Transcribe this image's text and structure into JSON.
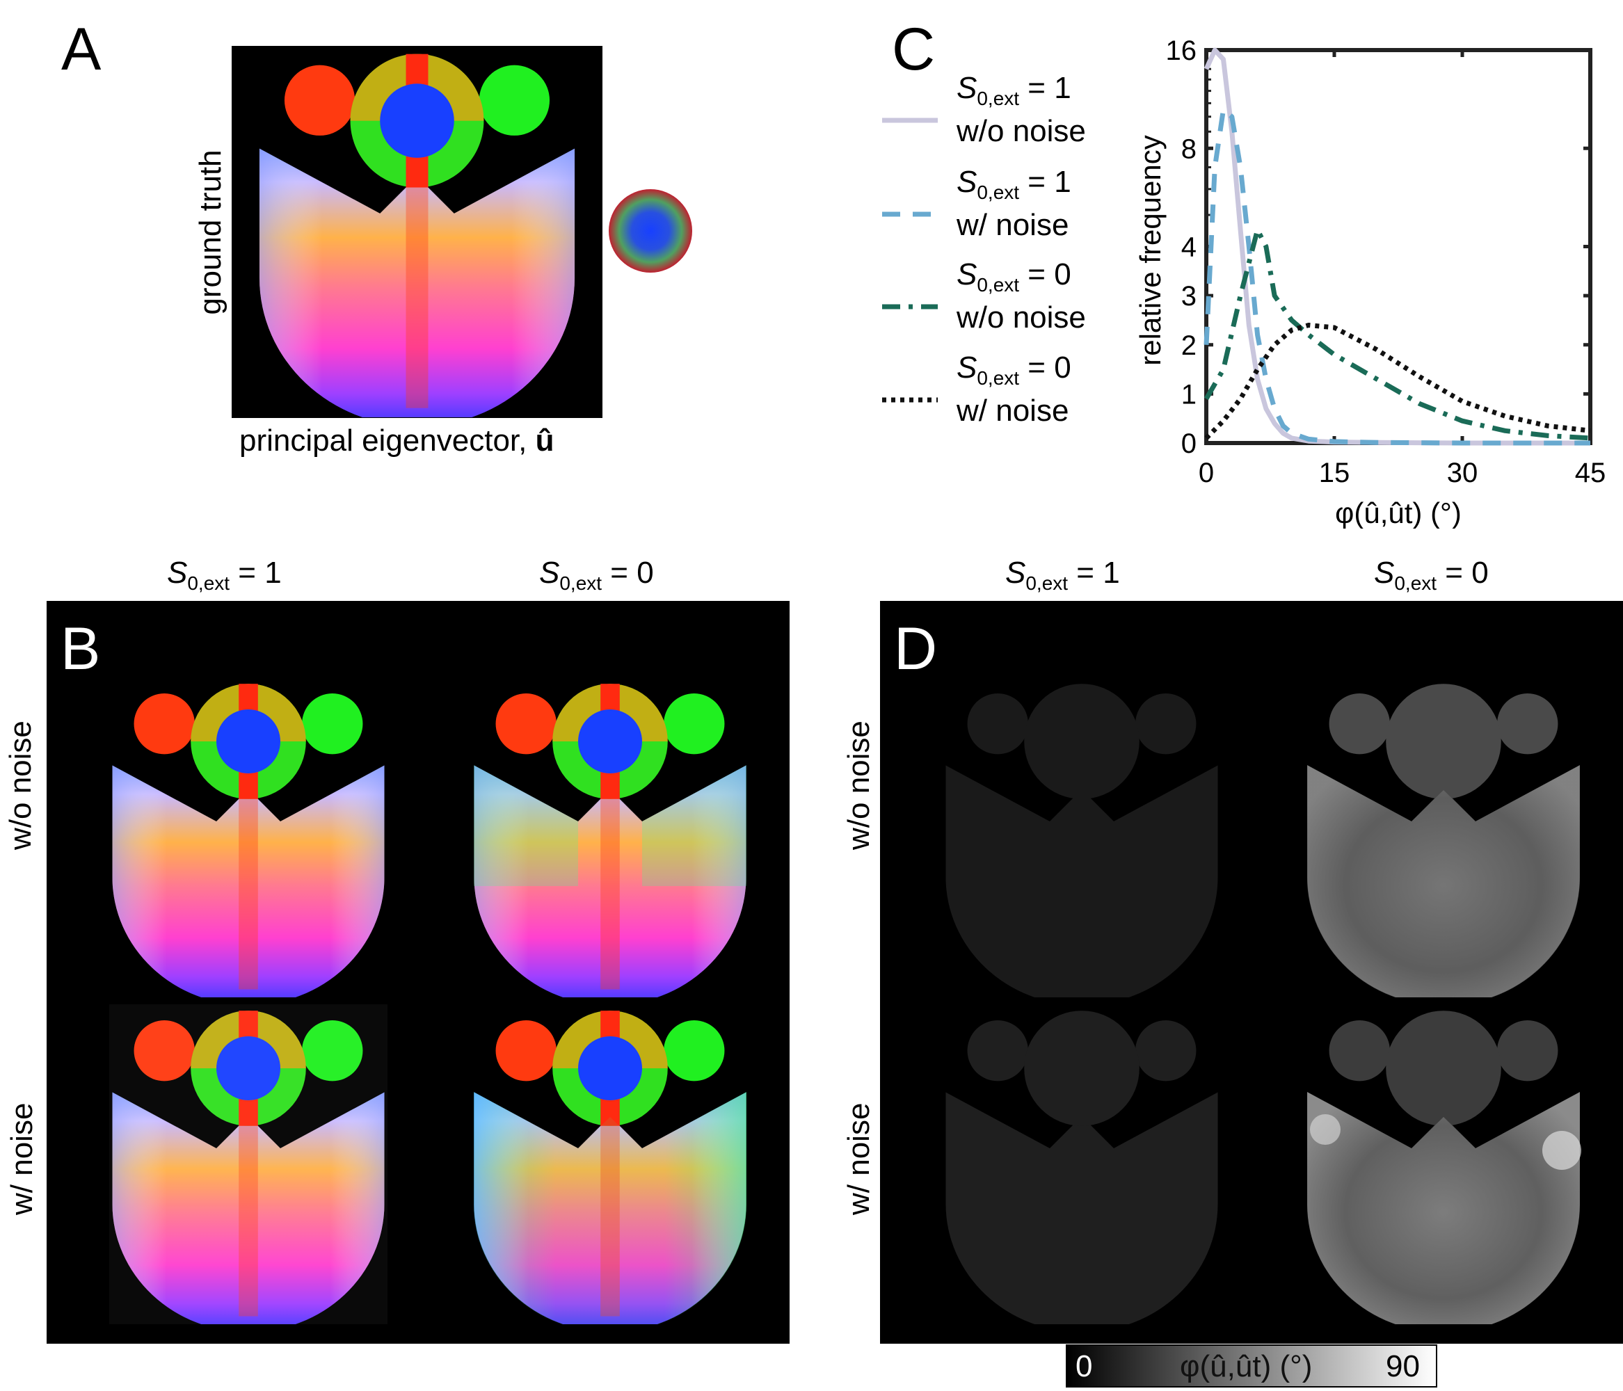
{
  "panels": {
    "a": {
      "letter": "A",
      "ylabel": "ground truth",
      "xlabel": "principal eigenvector, ",
      "xlabel_sym": "û"
    },
    "b": {
      "letter": "B",
      "col1": "= 1",
      "col2": "= 0",
      "row1": "w/o noise",
      "row2": "w/ noise"
    },
    "c": {
      "letter": "C"
    },
    "d": {
      "letter": "D",
      "col1": "= 1",
      "col2": "= 0",
      "row1": "w/o noise",
      "row2": "w/ noise",
      "cbar_min": "0",
      "cbar_max": "90",
      "cbar_label": "φ(û,ût) (°)"
    }
  },
  "symbol": {
    "S": "S",
    "sub": "0,ext"
  },
  "legend": [
    {
      "eq": "= 1",
      "noise": "w/o noise",
      "color": "#c9c6dd",
      "dash": "none"
    },
    {
      "eq": "= 1",
      "noise": "w/ noise",
      "color": "#68a9cf",
      "dash": "26 18"
    },
    {
      "eq": "= 0",
      "noise": "w/o noise",
      "color": "#1a6b57",
      "dash": "26 12 6 12"
    },
    {
      "eq": "= 0",
      "noise": "w/ noise",
      "color": "#111111",
      "dash": "6 7"
    }
  ],
  "chart_data": {
    "type": "line",
    "xlabel": "φ(û,ût) (°)",
    "ylabel": "relative frequency",
    "xlim": [
      0,
      45
    ],
    "ylim": [
      0,
      16
    ],
    "xticks": [
      "0",
      "15",
      "30",
      "45"
    ],
    "yticks": [
      "0",
      "1",
      "2",
      "3",
      "4",
      "8",
      "16"
    ],
    "series": [
      {
        "name": "S0,ext = 1 w/o noise",
        "x": [
          0,
          1,
          2,
          3,
          4,
          5,
          6,
          7,
          8,
          9,
          10,
          12,
          15,
          20,
          30,
          45
        ],
        "y": [
          14,
          16,
          15,
          9,
          4.5,
          2.4,
          1.3,
          0.7,
          0.4,
          0.2,
          0.1,
          0.04,
          0.02,
          0.01,
          0,
          0
        ]
      },
      {
        "name": "S0,ext = 1 w/ noise",
        "x": [
          0,
          1,
          2,
          3,
          4,
          5,
          6,
          7,
          8,
          9,
          10,
          12,
          15,
          20,
          30,
          45
        ],
        "y": [
          2,
          7,
          10.5,
          10,
          7,
          4,
          2.2,
          1.3,
          0.7,
          0.35,
          0.2,
          0.08,
          0.03,
          0.01,
          0,
          0
        ]
      },
      {
        "name": "S0,ext = 0 w/o noise",
        "x": [
          0,
          2,
          4,
          6,
          7,
          8,
          10,
          12,
          15,
          20,
          25,
          30,
          35,
          40,
          45
        ],
        "y": [
          0.9,
          1.5,
          3,
          4.5,
          4,
          3,
          2.5,
          2.2,
          1.8,
          1.3,
          0.8,
          0.45,
          0.25,
          0.15,
          0.1
        ]
      },
      {
        "name": "S0,ext = 0 w/ noise",
        "x": [
          0,
          2,
          4,
          6,
          8,
          10,
          12,
          15,
          20,
          25,
          30,
          35,
          40,
          45
        ],
        "y": [
          0.1,
          0.45,
          0.9,
          1.5,
          2.0,
          2.3,
          2.4,
          2.35,
          1.9,
          1.35,
          0.85,
          0.55,
          0.35,
          0.25
        ]
      }
    ]
  }
}
